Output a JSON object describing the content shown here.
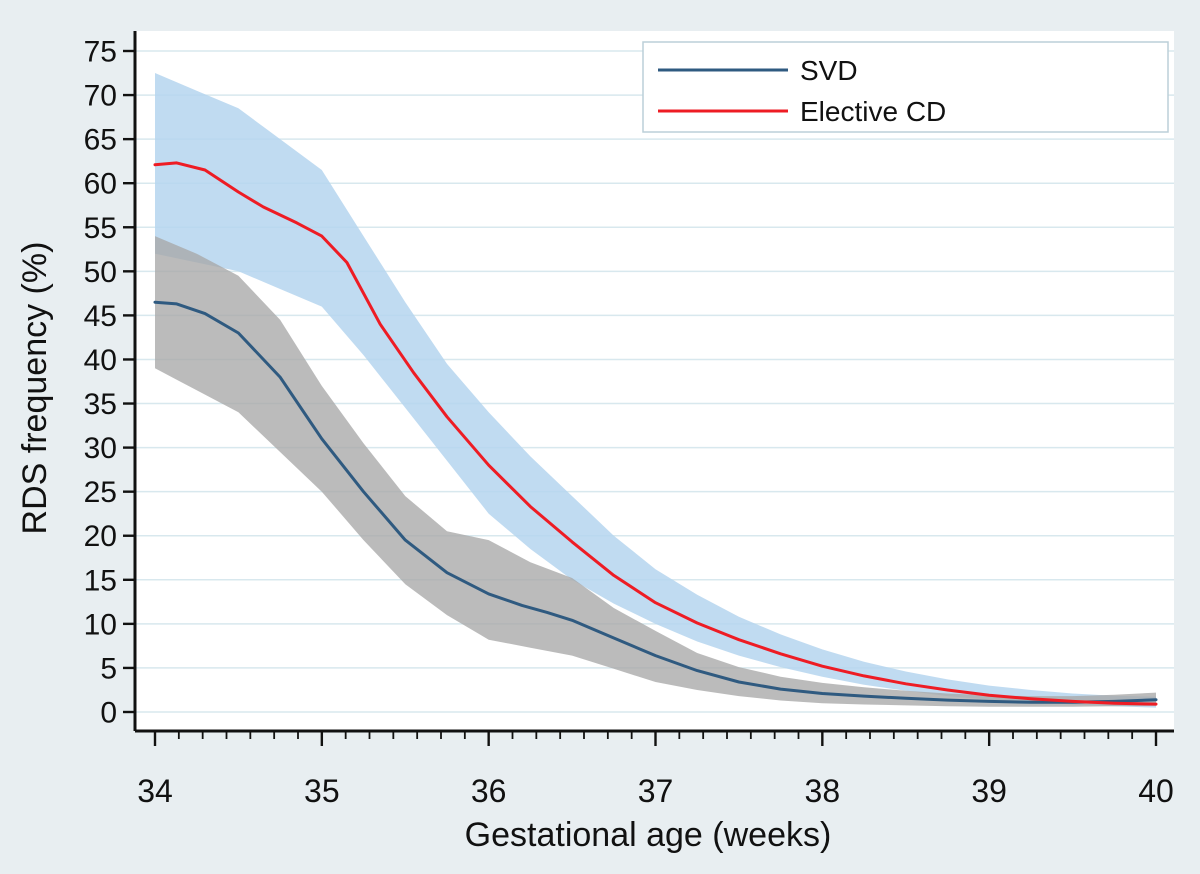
{
  "page": {
    "background": "#e8eef1"
  },
  "chart_data": {
    "type": "line",
    "title": "",
    "xlabel": "Gestational age (weeks)",
    "ylabel": "RDS frequency (%)",
    "xlim": [
      34,
      40
    ],
    "ylim": [
      0,
      75
    ],
    "x_ticks": [
      34,
      35,
      36,
      37,
      38,
      39,
      40
    ],
    "x_minor_ticks_per_week": 7,
    "y_ticks": [
      0,
      5,
      10,
      15,
      20,
      25,
      30,
      35,
      40,
      45,
      50,
      55,
      60,
      65,
      70,
      75
    ],
    "grid": "horizontal-only",
    "plot_background": "#ffffff",
    "grid_color": "#d8e8ee",
    "axis_color": "#111111",
    "legend": {
      "position": "top-right",
      "background": "#ffffff",
      "border_color": "#bccfd8",
      "entries": [
        "SVD",
        "Elective CD"
      ]
    },
    "series": [
      {
        "name": "SVD",
        "color": "#2f5a80",
        "band_color": "#a8a8a8",
        "band_opacity": 0.78,
        "points": [
          [
            34,
            46.5
          ],
          [
            34.13,
            46.3
          ],
          [
            34.3,
            45.2
          ],
          [
            34.5,
            43
          ],
          [
            34.75,
            38
          ],
          [
            34.9,
            33.8
          ],
          [
            35,
            31
          ],
          [
            35.25,
            25
          ],
          [
            35.5,
            19.5
          ],
          [
            35.75,
            15.8
          ],
          [
            36,
            13.4
          ],
          [
            36.2,
            12.1
          ],
          [
            36.35,
            11.3
          ],
          [
            36.5,
            10.4
          ],
          [
            36.75,
            8.4
          ],
          [
            37,
            6.4
          ],
          [
            37.25,
            4.7
          ],
          [
            37.5,
            3.4
          ],
          [
            37.75,
            2.6
          ],
          [
            38,
            2.1
          ],
          [
            38.25,
            1.8
          ],
          [
            38.5,
            1.55
          ],
          [
            38.75,
            1.35
          ],
          [
            39,
            1.2
          ],
          [
            39.25,
            1.1
          ],
          [
            39.5,
            1.1
          ],
          [
            39.75,
            1.2
          ],
          [
            40,
            1.4
          ]
        ],
        "ci": [
          [
            34,
            39,
            54
          ],
          [
            34.25,
            36.5,
            52
          ],
          [
            34.5,
            34,
            49.5
          ],
          [
            34.75,
            29.5,
            44.5
          ],
          [
            35,
            25,
            37
          ],
          [
            35.25,
            19.5,
            30.5
          ],
          [
            35.5,
            14.5,
            24.5
          ],
          [
            35.75,
            11,
            20.5
          ],
          [
            36,
            8.2,
            19.5
          ],
          [
            36.25,
            7.3,
            17
          ],
          [
            36.5,
            6.4,
            15.2
          ],
          [
            36.75,
            4.9,
            11.8
          ],
          [
            37,
            3.4,
            9.2
          ],
          [
            37.25,
            2.5,
            6.7
          ],
          [
            37.5,
            1.8,
            5.1
          ],
          [
            37.75,
            1.3,
            4
          ],
          [
            38,
            1,
            3.3
          ],
          [
            38.25,
            0.85,
            2.8
          ],
          [
            38.5,
            0.75,
            2.4
          ],
          [
            38.75,
            0.65,
            2.1
          ],
          [
            39,
            0.6,
            1.9
          ],
          [
            39.25,
            0.6,
            1.8
          ],
          [
            39.5,
            0.6,
            1.8
          ],
          [
            39.75,
            0.65,
            1.95
          ],
          [
            40,
            0.7,
            2.2
          ]
        ]
      },
      {
        "name": "Elective CD",
        "color": "#ee1c24",
        "band_color": "#b5d5ee",
        "band_opacity": 0.85,
        "points": [
          [
            34,
            62.1
          ],
          [
            34.13,
            62.3
          ],
          [
            34.3,
            61.5
          ],
          [
            34.5,
            59
          ],
          [
            34.65,
            57.3
          ],
          [
            34.85,
            55.5
          ],
          [
            35,
            54
          ],
          [
            35.15,
            51
          ],
          [
            35.35,
            44
          ],
          [
            35.55,
            38.5
          ],
          [
            35.75,
            33.5
          ],
          [
            36,
            28
          ],
          [
            36.25,
            23.3
          ],
          [
            36.5,
            19.3
          ],
          [
            36.75,
            15.5
          ],
          [
            37,
            12.4
          ],
          [
            37.25,
            10.1
          ],
          [
            37.5,
            8.2
          ],
          [
            37.75,
            6.6
          ],
          [
            38,
            5.2
          ],
          [
            38.25,
            4.1
          ],
          [
            38.5,
            3.2
          ],
          [
            38.75,
            2.5
          ],
          [
            39,
            1.9
          ],
          [
            39.25,
            1.5
          ],
          [
            39.5,
            1.2
          ],
          [
            39.75,
            1
          ],
          [
            40,
            0.9
          ]
        ],
        "ci": [
          [
            34,
            52,
            72.5
          ],
          [
            34.25,
            51,
            70.5
          ],
          [
            34.5,
            50,
            68.5
          ],
          [
            34.75,
            48,
            65
          ],
          [
            35,
            46,
            61.5
          ],
          [
            35.25,
            40.5,
            54
          ],
          [
            35.5,
            34.5,
            46.5
          ],
          [
            35.75,
            28.5,
            39.5
          ],
          [
            36,
            22.5,
            34
          ],
          [
            36.25,
            18.5,
            29
          ],
          [
            36.5,
            15,
            24.5
          ],
          [
            36.75,
            12.3,
            20
          ],
          [
            37,
            10,
            16.2
          ],
          [
            37.25,
            8,
            13.3
          ],
          [
            37.5,
            6.4,
            10.8
          ],
          [
            37.75,
            5.1,
            8.8
          ],
          [
            38,
            4,
            7.1
          ],
          [
            38.25,
            3.1,
            5.7
          ],
          [
            38.5,
            2.4,
            4.6
          ],
          [
            38.75,
            1.8,
            3.7
          ],
          [
            39,
            1.4,
            3
          ],
          [
            39.25,
            1.1,
            2.5
          ],
          [
            39.5,
            0.85,
            2.1
          ],
          [
            39.75,
            0.65,
            1.85
          ],
          [
            40,
            0.5,
            1.75
          ]
        ]
      }
    ]
  }
}
